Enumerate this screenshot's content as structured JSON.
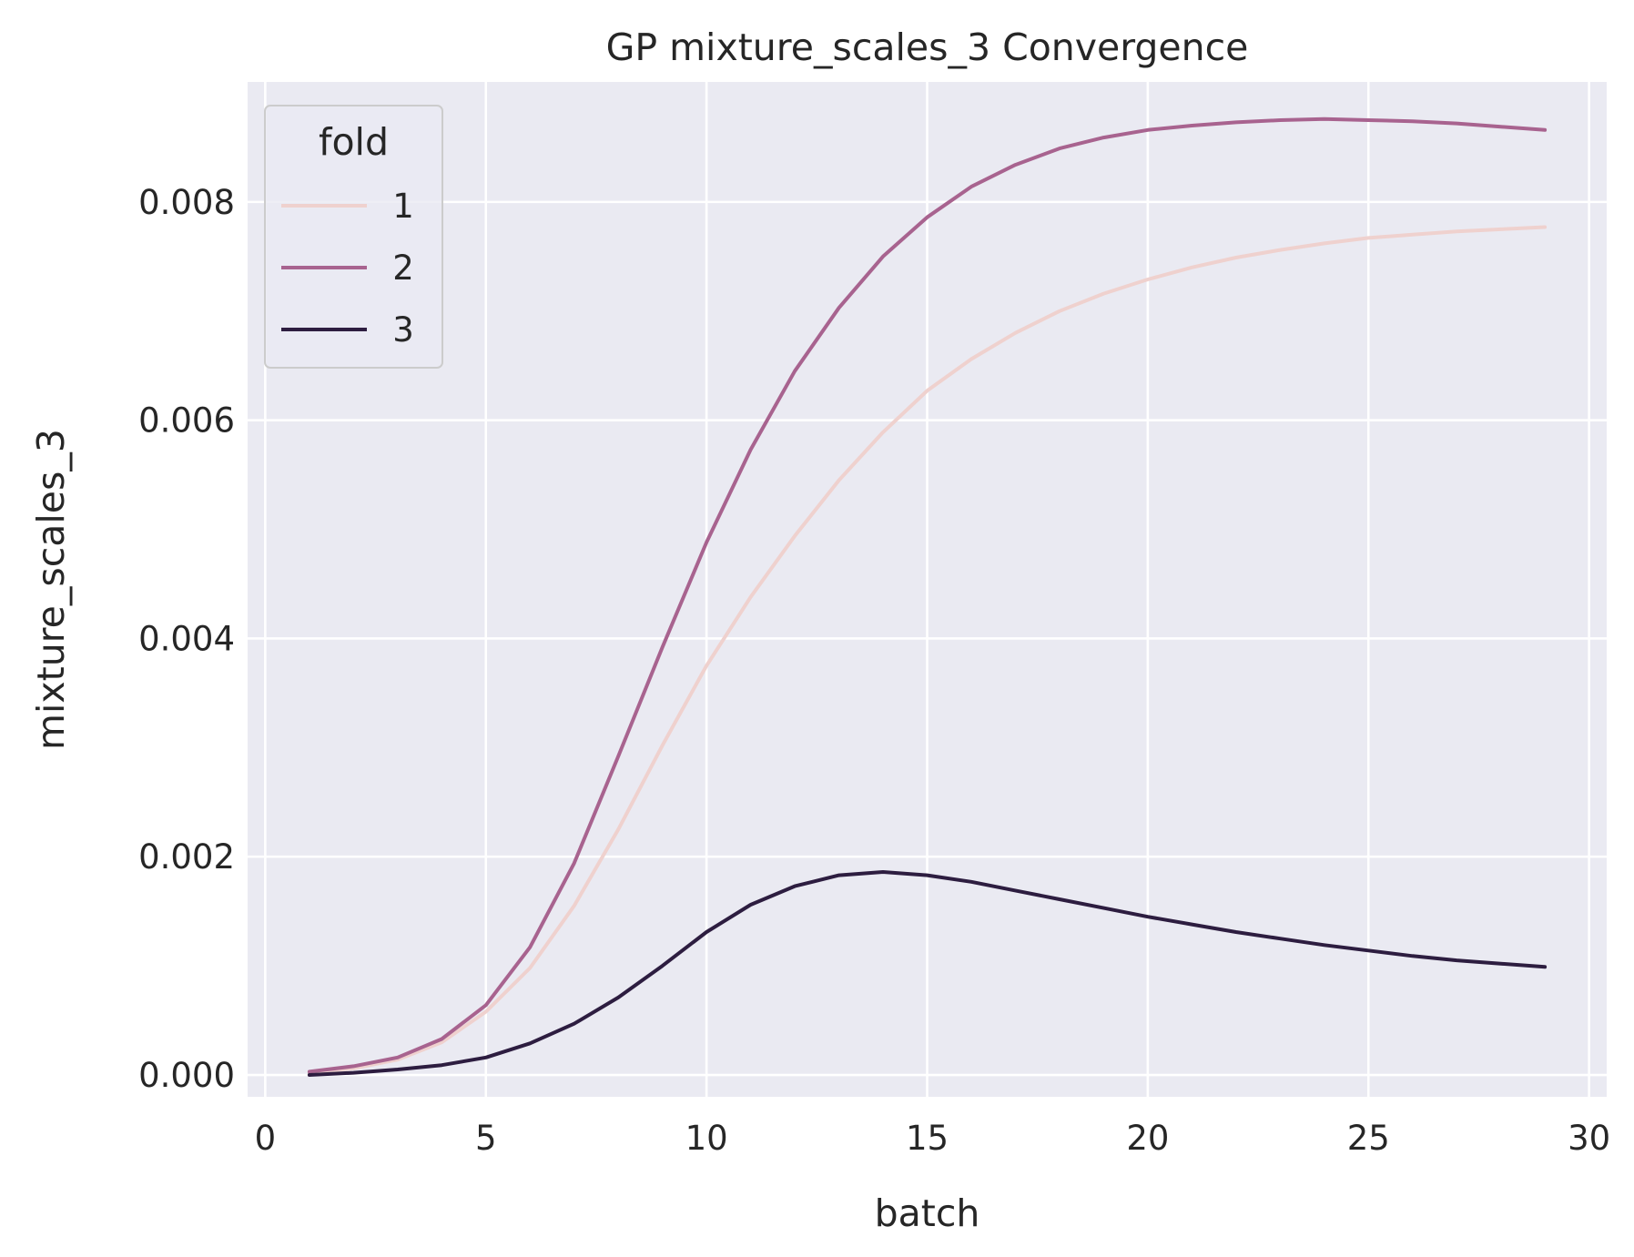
{
  "chart_data": {
    "type": "line",
    "title": "GP mixture_scales_3 Convergence",
    "xlabel": "batch",
    "ylabel": "mixture_scales_3",
    "xlim": [
      -0.4,
      30.4
    ],
    "ylim": [
      -0.0002,
      0.0091
    ],
    "xticks": [
      0,
      5,
      10,
      15,
      20,
      25,
      30
    ],
    "yticks": [
      0.0,
      0.002,
      0.004,
      0.006,
      0.008
    ],
    "xtick_labels": [
      "0",
      "5",
      "10",
      "15",
      "20",
      "25",
      "30"
    ],
    "ytick_labels": [
      "0.000",
      "0.002",
      "0.004",
      "0.006",
      "0.008"
    ],
    "grid": true,
    "background": "#eaeaf2",
    "legend": {
      "title": "fold",
      "placement": "top-left"
    },
    "x": [
      1,
      2,
      3,
      4,
      5,
      6,
      7,
      8,
      9,
      10,
      11,
      12,
      13,
      14,
      15,
      16,
      17,
      18,
      19,
      20,
      21,
      22,
      23,
      24,
      25,
      26,
      27,
      28,
      29
    ],
    "series": [
      {
        "name": "1",
        "color": "#efd1ce",
        "values": [
          2e-05,
          6e-05,
          0.00014,
          0.0003,
          0.00058,
          0.00098,
          0.00155,
          0.00225,
          0.00302,
          0.00375,
          0.00438,
          0.00494,
          0.00545,
          0.00589,
          0.00627,
          0.00656,
          0.0068,
          0.007,
          0.00716,
          0.00729,
          0.0074,
          0.00749,
          0.00756,
          0.00762,
          0.00767,
          0.0077,
          0.00773,
          0.00775,
          0.00777
        ]
      },
      {
        "name": "2",
        "color": "#a8638f",
        "values": [
          3e-05,
          8e-05,
          0.00016,
          0.00033,
          0.00064,
          0.00117,
          0.00194,
          0.00292,
          0.00392,
          0.00488,
          0.00573,
          0.00645,
          0.00703,
          0.0075,
          0.00786,
          0.00814,
          0.00834,
          0.00849,
          0.00859,
          0.00866,
          0.0087,
          0.00873,
          0.00875,
          0.00876,
          0.00875,
          0.00874,
          0.00872,
          0.00869,
          0.00866
        ]
      },
      {
        "name": "3",
        "color": "#2d1d40",
        "values": [
          0.0,
          2e-05,
          5e-05,
          9e-05,
          0.00016,
          0.00029,
          0.00047,
          0.00071,
          0.001,
          0.00131,
          0.00156,
          0.00173,
          0.00183,
          0.00186,
          0.00183,
          0.00177,
          0.00169,
          0.00161,
          0.00153,
          0.00145,
          0.00138,
          0.00131,
          0.00125,
          0.00119,
          0.00114,
          0.00109,
          0.00105,
          0.00102,
          0.00099
        ]
      }
    ]
  }
}
